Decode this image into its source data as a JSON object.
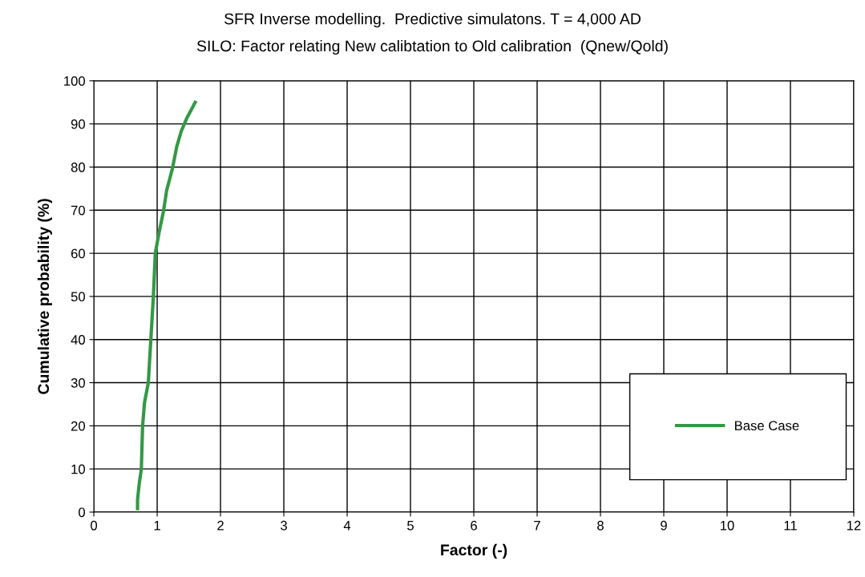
{
  "chart_data": {
    "type": "line",
    "title": "SFR Inverse modelling.  Predictive simulatons. T = 4,000 AD",
    "subtitle": "SILO: Factor relating New calibtation to Old calibration  (Qnew/Qold)",
    "xlabel": "Factor (-)",
    "ylabel": "Cumulative probability (%)",
    "series": [
      {
        "name": "Base Case",
        "color": "#339944",
        "x": [
          0.69,
          0.69,
          0.72,
          0.75,
          0.76,
          0.77,
          0.8,
          0.86,
          0.9,
          0.94,
          0.97,
          1.03,
          1.1,
          1.15,
          1.24,
          1.31,
          1.38,
          1.47,
          1.54,
          1.6
        ],
        "values": [
          0.8,
          2.9,
          7,
          10,
          15.2,
          20,
          25.4,
          30,
          40,
          50,
          60,
          64.8,
          69.8,
          74.6,
          79.6,
          84.8,
          88.3,
          91.4,
          93.3,
          95.0
        ]
      }
    ],
    "xlim": [
      0,
      12
    ],
    "xticks": [
      0,
      1,
      2,
      3,
      4,
      5,
      6,
      7,
      8,
      9,
      10,
      11,
      12
    ],
    "ylim": [
      0,
      100
    ],
    "yticks": [
      0,
      10,
      20,
      30,
      40,
      50,
      60,
      70,
      80,
      90,
      100
    ],
    "grid": true,
    "legend": "bottom right",
    "marker": "none",
    "line_style": "solid"
  }
}
